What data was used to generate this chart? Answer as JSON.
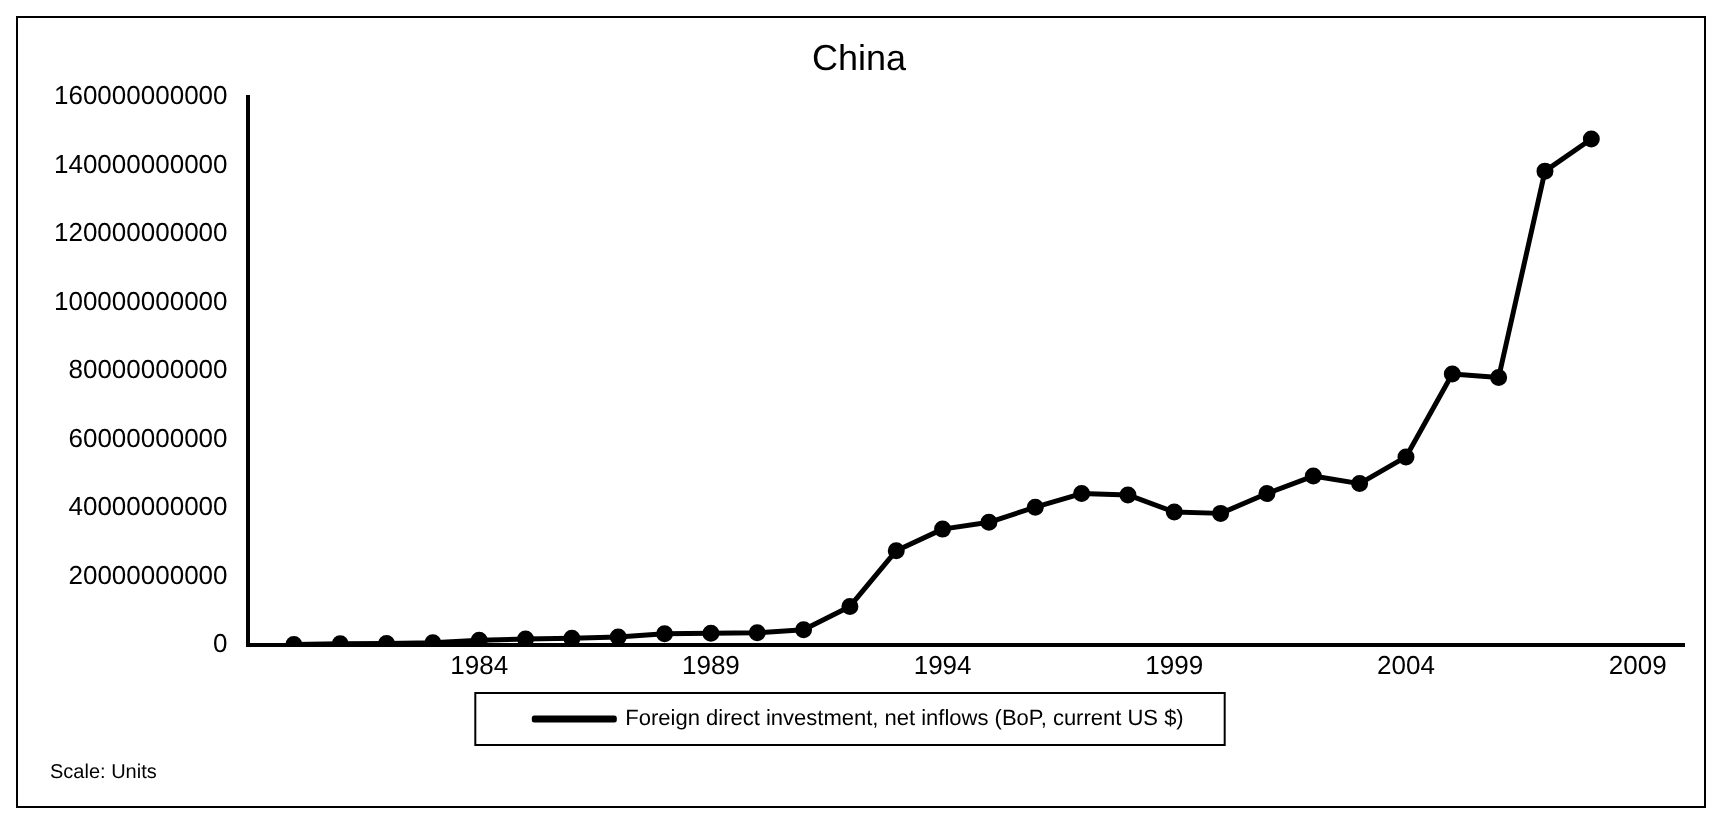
{
  "chart_data": {
    "type": "line",
    "title": "China",
    "x": [
      1980,
      1981,
      1982,
      1983,
      1984,
      1985,
      1986,
      1987,
      1988,
      1989,
      1990,
      1991,
      1992,
      1993,
      1994,
      1995,
      1996,
      1997,
      1998,
      1999,
      2000,
      2001,
      2002,
      2003,
      2004,
      2005,
      2006,
      2007,
      2008
    ],
    "series": [
      {
        "name": "Foreign direct investment, net inflows (BoP, current US $)",
        "color": "#000000",
        "values": [
          100000000,
          300000000,
          400000000,
          600000000,
          1300000000,
          1700000000,
          1900000000,
          2300000000,
          3200000000,
          3400000000,
          3500000000,
          4400000000,
          11200000000,
          27500000000,
          33800000000,
          35800000000,
          40200000000,
          44200000000,
          43800000000,
          38800000000,
          38400000000,
          44200000000,
          49300000000,
          47100000000,
          54900000000,
          79100000000,
          78100000000,
          138400000000,
          147800000000
        ]
      }
    ],
    "xlim": [
      1979,
      2010
    ],
    "xticks": [
      1984,
      1989,
      1994,
      1999,
      2004,
      2009
    ],
    "ylim": [
      0,
      160000000000
    ],
    "yticks": [
      0,
      20000000000,
      40000000000,
      60000000000,
      80000000000,
      100000000000,
      120000000000,
      140000000000,
      160000000000
    ],
    "grid": false,
    "legend": "bottom",
    "marker": "circle",
    "line_style": "solid",
    "annotations": [
      "Scale: Units"
    ]
  }
}
